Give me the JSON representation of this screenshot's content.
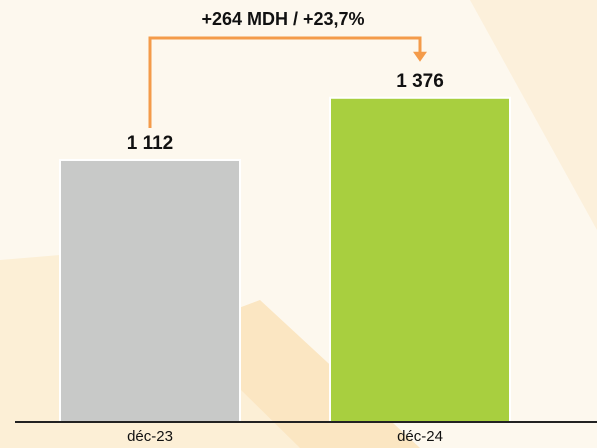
{
  "chart_data": {
    "type": "bar",
    "annotation": "+264 MDH / +23,7%",
    "categories": [
      "déc-23",
      "déc-24"
    ],
    "values": [
      1112,
      1376
    ],
    "value_labels": [
      "1 112",
      "1 376"
    ],
    "colors": [
      "#c8c9c8",
      "#a8cf3f"
    ],
    "annotation_color": "#f49b4a",
    "ylim": [
      0,
      1600
    ]
  }
}
